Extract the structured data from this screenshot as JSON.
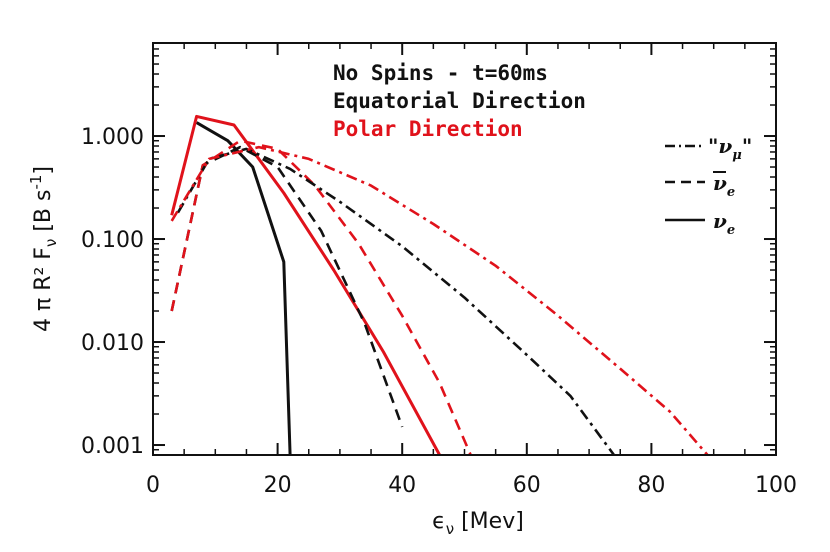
{
  "chart_data": {
    "type": "line",
    "xlabel": "ϵ",
    "xlabel_sub": "ν",
    "xlabel_unit": " [Mev]",
    "ylabel": "4 π R² F",
    "ylabel_sub": "ν",
    "ylabel_unit": " [B s",
    "ylabel_exp": "-1",
    "ylabel_close": "]",
    "xlim": [
      0,
      100
    ],
    "ylim": [
      0.0008,
      8
    ],
    "yscale": "log",
    "xticks": [
      0,
      20,
      40,
      60,
      80,
      100
    ],
    "xtick_labels": [
      "0",
      "20",
      "40",
      "60",
      "80",
      "100"
    ],
    "yticks": [
      0.001,
      0.01,
      0.1,
      1
    ],
    "ytick_labels": [
      "0.001",
      "0.010",
      "0.100",
      "1.000"
    ],
    "annotations": [
      {
        "text": "No Spins - t=60ms",
        "color": "#111111"
      },
      {
        "text": "Equatorial Direction",
        "color": "#111111"
      },
      {
        "text": "Polar Direction",
        "color": "#e0121b"
      }
    ],
    "legend": [
      {
        "label": "\"ν",
        "sub": "μ",
        "tail": "\"",
        "dash": "dashdot"
      },
      {
        "label": "ν",
        "sub": "e",
        "overbar": true,
        "dash": "dash"
      },
      {
        "label": "ν",
        "sub": "e",
        "dash": "solid"
      }
    ],
    "series": [
      {
        "name": "nu_e equatorial",
        "color": "#111111",
        "dash": "solid",
        "x": [
          7,
          12,
          16,
          21,
          22
        ],
        "y": [
          1.35,
          0.9,
          0.5,
          0.06,
          0.0008
        ]
      },
      {
        "name": "nu_e polar",
        "color": "#e0121b",
        "dash": "solid",
        "x": [
          3,
          7,
          13,
          21,
          29,
          37,
          46
        ],
        "y": [
          0.17,
          1.55,
          1.28,
          0.28,
          0.05,
          0.008,
          0.0008
        ]
      },
      {
        "name": "anti-nu_e equatorial",
        "color": "#111111",
        "dash": "dash",
        "x": [
          3,
          8,
          14,
          20,
          27,
          34,
          40
        ],
        "y": [
          0.02,
          0.52,
          0.78,
          0.5,
          0.12,
          0.015,
          0.0015
        ]
      },
      {
        "name": "anti-nu_e polar",
        "color": "#e0121b",
        "dash": "dash",
        "x": [
          3,
          8,
          14,
          20,
          26,
          33,
          40,
          46,
          51
        ],
        "y": [
          0.02,
          0.52,
          0.9,
          0.75,
          0.33,
          0.09,
          0.018,
          0.004,
          0.0008
        ]
      },
      {
        "name": "nu_mu equatorial",
        "color": "#111111",
        "dash": "dashdot",
        "x": [
          4,
          9,
          15,
          22,
          30,
          40,
          50,
          60,
          67,
          74
        ],
        "y": [
          0.18,
          0.6,
          0.75,
          0.48,
          0.23,
          0.085,
          0.027,
          0.0075,
          0.003,
          0.0008
        ]
      },
      {
        "name": "nu_mu polar",
        "color": "#e0121b",
        "dash": "dashdot",
        "x": [
          3,
          9,
          17,
          25,
          35,
          45,
          55,
          65,
          75,
          83,
          89
        ],
        "y": [
          0.15,
          0.6,
          0.78,
          0.6,
          0.33,
          0.14,
          0.055,
          0.018,
          0.0055,
          0.0021,
          0.0008
        ]
      }
    ]
  }
}
